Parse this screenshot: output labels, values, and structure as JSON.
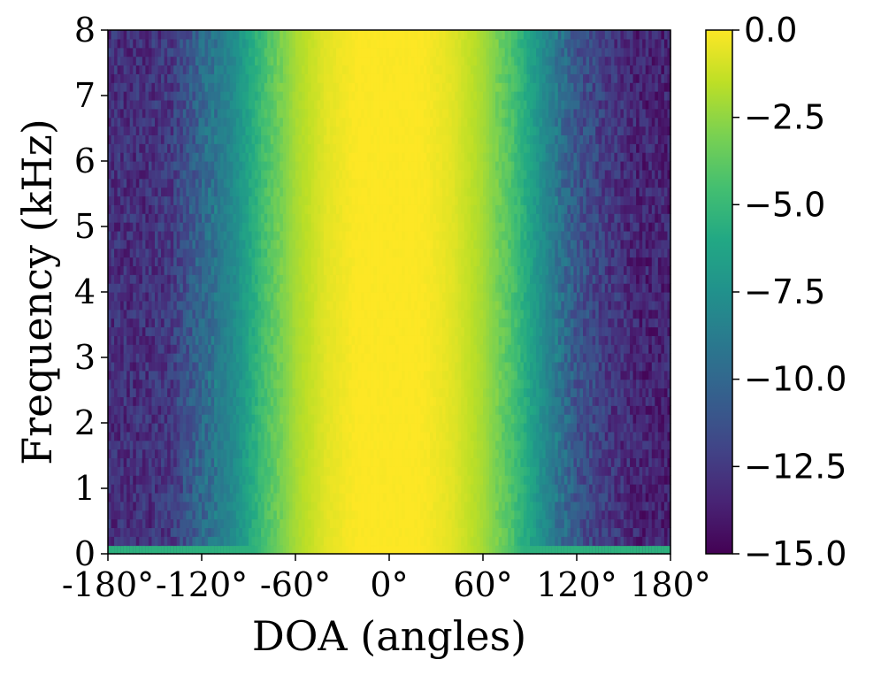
{
  "chart_data": {
    "type": "heatmap",
    "title": "",
    "xlabel": "DOA (angles)",
    "ylabel": "Frequency (kHz)",
    "x_range": [
      -180,
      180
    ],
    "y_range": [
      0,
      8
    ],
    "x_ticks": [
      -180,
      -120,
      -60,
      0,
      60,
      120,
      180
    ],
    "x_tick_labels": [
      "-180°",
      "-120°",
      "-60°",
      "0°",
      "60°",
      "120°",
      "180°"
    ],
    "y_ticks": [
      0,
      1,
      2,
      3,
      4,
      5,
      6,
      7,
      8
    ],
    "y_tick_labels": [
      "0",
      "1",
      "2",
      "3",
      "4",
      "5",
      "6",
      "7",
      "8"
    ],
    "colormap": "viridis",
    "colorbar": {
      "range": [
        -15.0,
        0.0
      ],
      "ticks": [
        0.0,
        -2.5,
        -5.0,
        -7.5,
        -10.0,
        -12.5,
        -15.0
      ],
      "tick_labels": [
        "0.0",
        "−2.5",
        "−5.0",
        "−7.5",
        "−10.0",
        "−12.5",
        "−15.0"
      ]
    },
    "profile_by_angle": {
      "angles": [
        -180,
        -160,
        -140,
        -120,
        -100,
        -80,
        -60,
        -40,
        -20,
        0,
        20,
        40,
        60,
        80,
        100,
        120,
        140,
        160,
        180
      ],
      "values": [
        -13,
        -13,
        -12.5,
        -10,
        -8,
        -4.5,
        -2,
        -0.6,
        0,
        0,
        0,
        -0.6,
        -2,
        -4.5,
        -8,
        -11,
        -12.5,
        -13.5,
        -13.5
      ]
    },
    "low_frequency_band": {
      "max_khz": 0.12,
      "value": -5.5
    },
    "grid": false
  }
}
